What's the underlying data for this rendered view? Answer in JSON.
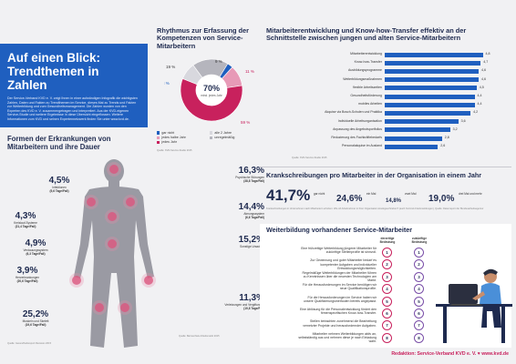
{
  "hero": {
    "title_line1": "Auf einen Blick:",
    "title_line2": "Trendthemen in Zahlen",
    "intro": "Der Service-Verband KVD e. V. zeigt Ihnen in einer aufwändigen Infografik die wichtigsten Zahlen, Daten und Fakten zu Trendthemen im Service, dieses Mal zu Trends und Fakten zur Weiterbildung und zum Gesundheitsmanagement. Die Zahlen wurden von den Experten des KVD e. V. zusammengetragen und interpretiert. Aus der KVD-eigenen Service-Studie und weitere Ergebnisse in diese Übersicht eingeflossen. Weitere Informationen zum KVD und seinen Expertennetzwerk finden Sie unter www.kvd.de."
  },
  "rhythm": {
    "title": "Rhythmus zur Erfassung der Kompetenzen von Service-Mitarbeitern",
    "center_value": "70%",
    "center_label": "mind. jedes Jahr",
    "source": "Quelle: KVD-Service-Studie 2015",
    "chart_data": {
      "type": "pie",
      "slices": [
        {
          "name": "gar nicht",
          "value": 3,
          "color": "#1f5fbf"
        },
        {
          "name": "jedes halbe Jahr",
          "value": 11,
          "color": "#e79ab7"
        },
        {
          "name": "jedes Jahr",
          "value": 59,
          "color": "#c8215d"
        },
        {
          "name": "alle 2 Jahre",
          "value": 9,
          "color": "#d8d8de"
        },
        {
          "name": "unregelmäßig",
          "value": 19,
          "color": "#b5b5bd"
        }
      ],
      "labels": [
        "3 %",
        "11 %",
        "59 %",
        "9 %",
        "19 %"
      ]
    },
    "legend": [
      "gar nicht",
      "jedes halbe Jahr",
      "jedes Jahr",
      "alle 2 Jahre",
      "unregelmäßig"
    ]
  },
  "transfer": {
    "title": "Mitarbeiterentwicklung und Know-how-Transfer effektiv an der Schnittstelle zwischen jungen und alten Service-Mitarbeitern",
    "source": "Quelle: KVD-Service-Studie 2015",
    "chart_data": {
      "type": "bar",
      "orientation": "horizontal",
      "categories": [
        "Mitarbeiterentwicklung",
        "Know-how-Transfer",
        "Ausbildungsprogramme",
        "Weiterbildungsmaßnahmen",
        "flexible Arbeitszeiten",
        "Gesundheitsförderung",
        "mobiles Arbeiten",
        "Akquise via Bosch-Schulen und Praktika",
        "Individuelle Arbeitsorganisation",
        "Anpassung des Angebotsportfolios",
        "Reduzierung des Fachkräftebedarfs",
        "Personalakquise im Ausland"
      ],
      "values": [
        4.8,
        4.7,
        4.6,
        4.6,
        4.5,
        4.4,
        4.4,
        4.2,
        3.6,
        3.2,
        2.8,
        2.6
      ],
      "value_labels": [
        "4,8",
        "4,7",
        "4,6",
        "4,6",
        "4,5",
        "4,4",
        "4,4",
        "4,2",
        "3,6",
        "3,2",
        "2,8",
        "2,6"
      ],
      "xlim": [
        0,
        5
      ]
    }
  },
  "sick": {
    "title": "Krankschreibungen pro Mitarbeiter in der Organisation in einem Jahr",
    "items": [
      {
        "value": "41,7%",
        "label": "gar nicht"
      },
      {
        "value": "24,6%",
        "label": "ein Mal"
      },
      {
        "value": "14,8%",
        "label": "zwei Mal"
      },
      {
        "value": "19,0%",
        "label": "drei Mal und mehr"
      }
    ],
    "note": "Krankschreibungen in Unternehmen nach Mitarbeitern erhoben: Wie oft Arbeitnehmer in Ihrer Organisation krankgeschrieben? (auch Kurzzeit-Krankmeldungen), Quelle: Datenreport der Bundesarbeitsagentur"
  },
  "diseases": {
    "title": "Formen der Erkrankungen von Mitarbeitern und ihre Dauer",
    "items": [
      {
        "pct": "4,5%",
        "name": "Infektionen",
        "days": "(5,6 Tage/Fall)"
      },
      {
        "pct": "4,3%",
        "name": "Kreislauf-Systeme",
        "days": "(21,4 Tage/Fall)"
      },
      {
        "pct": "4,9%",
        "name": "Verdauungssystem",
        "days": "(6,3 Tage/Fall)"
      },
      {
        "pct": "3,9%",
        "name": "Herzerkrankungen",
        "days": "(20,6 Tage/Fall)"
      },
      {
        "pct": "25,2%",
        "name": "Muskeln und Skelett",
        "days": "(19,6 Tage/Fall)"
      },
      {
        "pct": "16,3%",
        "name": "Psychische Störungen",
        "days": "(38,8 Tage/Fall)"
      },
      {
        "pct": "14,4%",
        "name": "Atmungssystem",
        "days": "(6,6 Tage/Fall)"
      },
      {
        "pct": "15,2%",
        "name": "Sonstige Ursachen",
        "days": ""
      },
      {
        "pct": "11,3%",
        "name": "Verletzungen und Vergiftungen",
        "days": "(19,8 Tage/Fall)"
      }
    ],
    "source_left": "Quelle: Gesundheitsreport Rezessiv 2015",
    "source_right": "Quelle: Barmer/Gek Arbeitsmarkt 2015"
  },
  "training": {
    "title": "Weiterbildung vorhandener Service-Mitarbeiter",
    "col_left": "derzeitige Bedeutung",
    "col_right": "zukünftige Bedeutung",
    "statements": [
      "Eine frühzeitige Weiterbildung jüngerer Mitarbeiter für zukünftige Stellenprofile ist sinnvoll.",
      "Zur Gewinnung und guter Mitarbeiter bedarf es kompetenter Aufgaben und individueller Entwicklungsmöglichkeiten.",
      "Regelmäßige Weiterbildungen der Mitarbeiter führen zu Kenntnissen über die neuesten Technologien am Markt.",
      "Für die Herausforderungen im Service benötigen wir neue Qualifikationsprofile.",
      "Für die Herausforderungen im Service haben wir unsere Qualifizierungsmethoden bereits angepasst.",
      "Eine Ablösung für die Personalentwicklung fördert den firmenspezifischen Know-how-Transfer.",
      "Stellen betrachten zunehmend die Bearbeitung vernetzter Projekte und herausfordernder Aufgaben.",
      "Mitarbeiter nehmen Weiterbildungen aktiv an, selbstständig aus und nehmen diese je nach Einladung wahr."
    ],
    "current": [
      "1",
      "2",
      "3",
      "4",
      "5",
      "6",
      "7",
      "8"
    ],
    "future": [
      "1",
      "2",
      "3",
      "4",
      "5",
      "6",
      "7",
      "8"
    ]
  },
  "footer": {
    "text": "Redaktion: Service-Verband KVD e. V. ♥ www.kvd.de"
  }
}
